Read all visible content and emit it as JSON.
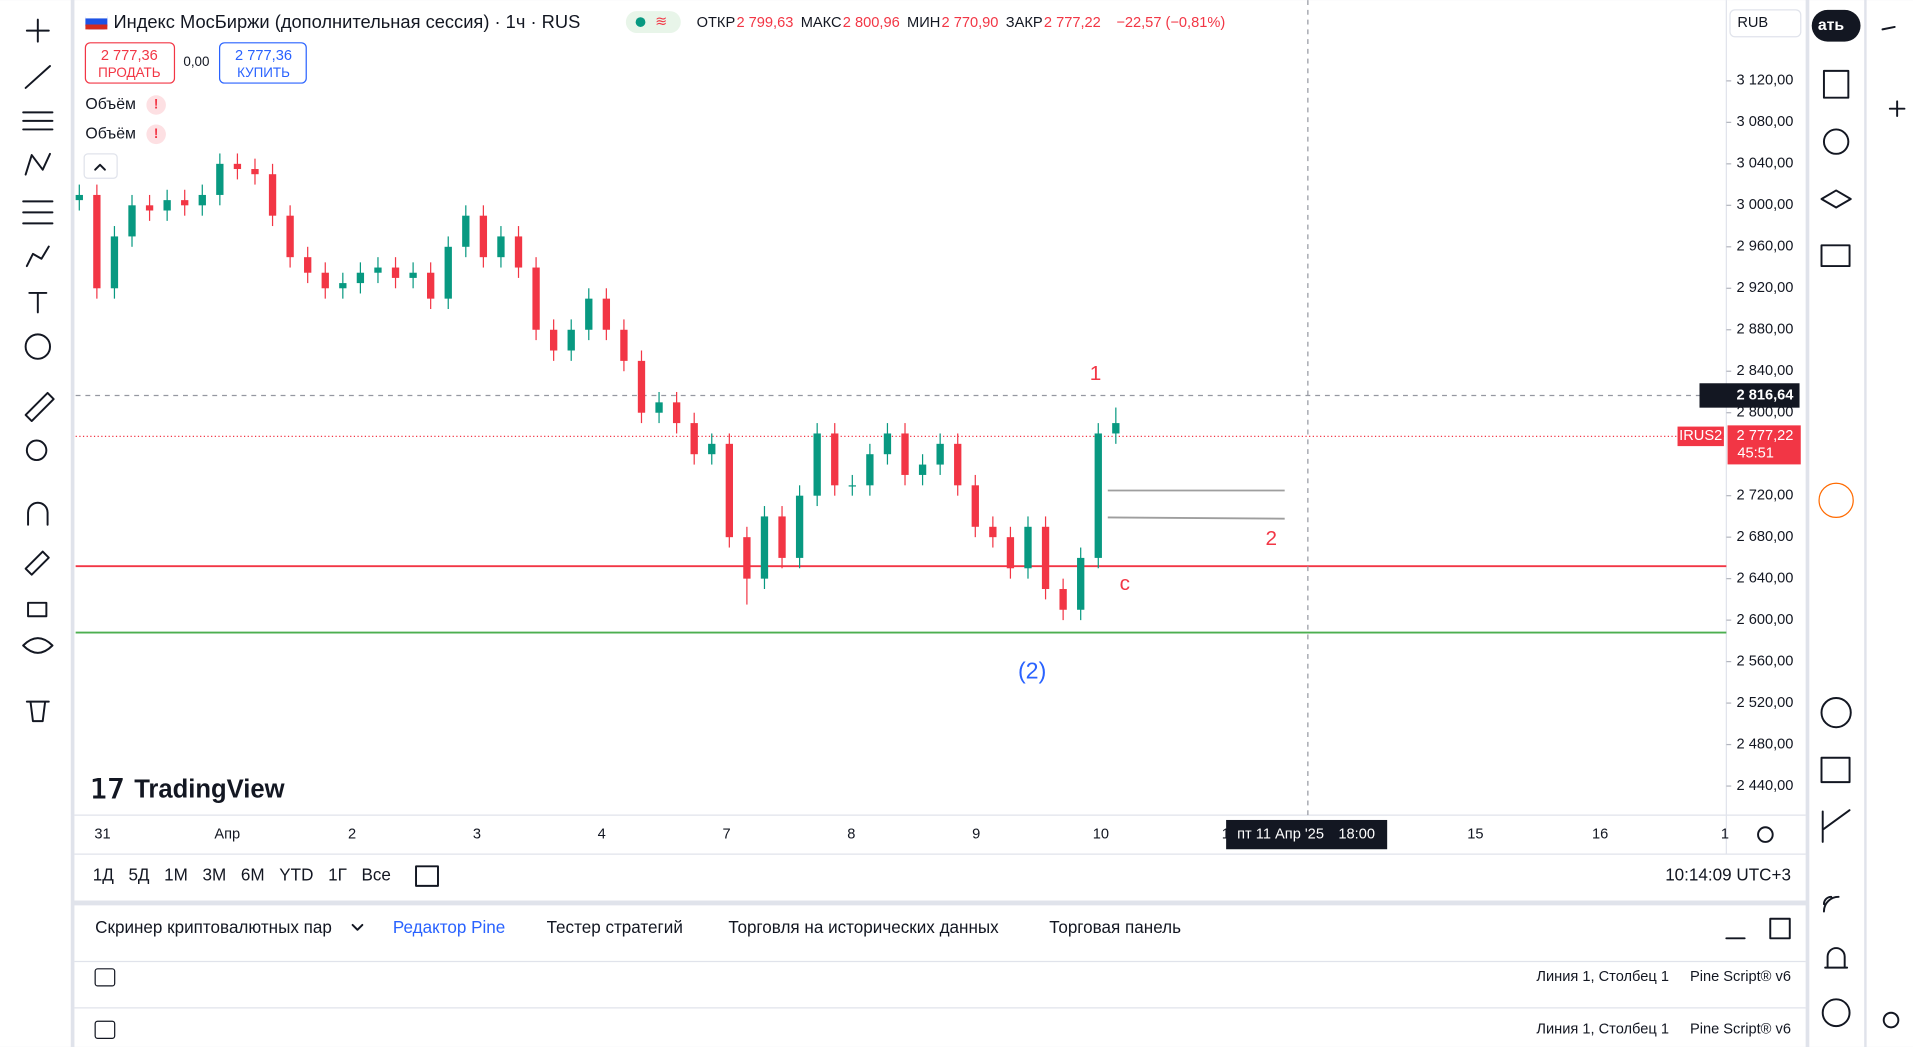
{
  "header": {
    "title": "Индекс МосБиржи (дополнительная сессия) · 1ч · RUS",
    "ohlc": [
      {
        "label": "ОТКР",
        "value": "2 799,63"
      },
      {
        "label": "МАКС",
        "value": "2 800,96"
      },
      {
        "label": "МИН",
        "value": "2 770,90"
      },
      {
        "label": "ЗАКР",
        "value": "2 777,22"
      }
    ],
    "change": "−22,57 (−0,81%)",
    "sell_price": "2 777,36",
    "sell": "ПРОДАТЬ",
    "spread": "0,00",
    "buy_price": "2 777,36",
    "buy": "КУПИТЬ",
    "indicators": [
      "Объём",
      "Объём"
    ],
    "currency": "RUB",
    "top_button": "ать"
  },
  "chart": {
    "type": "candlestick",
    "up_color": "#089981",
    "down_color": "#f23645",
    "ylim": [
      2412,
      3192
    ],
    "yticks": [
      {
        "value": 2440,
        "label": "2 440,00"
      },
      {
        "value": 2480,
        "label": "2 480,00"
      },
      {
        "value": 2520,
        "label": "2 520,00"
      },
      {
        "value": 2560,
        "label": "2 560,00"
      },
      {
        "value": 2600,
        "label": "2 600,00"
      },
      {
        "value": 2640,
        "label": "2 640,00"
      },
      {
        "value": 2680,
        "label": "2 680,00"
      },
      {
        "value": 2720,
        "label": "2 720,00"
      },
      {
        "value": 2800,
        "label": "2 800,00"
      },
      {
        "value": 2840,
        "label": "2 840,00"
      },
      {
        "value": 2880,
        "label": "2 880,00"
      },
      {
        "value": 2920,
        "label": "2 920,00"
      },
      {
        "value": 2960,
        "label": "2 960,00"
      },
      {
        "value": 3000,
        "label": "3 000,00"
      },
      {
        "value": 3040,
        "label": "3 040,00"
      },
      {
        "value": 3080,
        "label": "3 080,00"
      },
      {
        "value": 3120,
        "label": "3 120,00"
      }
    ],
    "grid": false,
    "xticks": [
      "31",
      "Апр",
      "2",
      "3",
      "4",
      "7",
      "8",
      "9",
      "10",
      "1",
      null,
      "15",
      "16",
      "1"
    ],
    "open": [
      3005,
      3010,
      2920,
      2970,
      3000,
      2995,
      3005,
      3000,
      3010,
      3040,
      3035,
      3030,
      2990,
      2950,
      2935,
      2920,
      2925,
      2935,
      2940,
      2930,
      2935,
      2910,
      2960,
      2990,
      2950,
      2970,
      2940,
      2880,
      2860,
      2880,
      2910,
      2880,
      2850,
      2800,
      2810,
      2790,
      2760,
      2770,
      2680,
      2640,
      2700,
      2660,
      2720,
      2780,
      2730,
      2730,
      2760,
      2780,
      2740,
      2750,
      2770,
      2730,
      2690,
      2680,
      2650,
      2690,
      2630,
      2610,
      2660,
      2780
    ],
    "high": [
      3020,
      3020,
      2980,
      3010,
      3010,
      3015,
      3015,
      3020,
      3050,
      3050,
      3045,
      3040,
      3000,
      2960,
      2945,
      2935,
      2945,
      2950,
      2950,
      2945,
      2945,
      2970,
      3000,
      3000,
      2980,
      2980,
      2950,
      2890,
      2890,
      2920,
      2920,
      2890,
      2860,
      2820,
      2820,
      2800,
      2780,
      2780,
      2690,
      2710,
      2710,
      2730,
      2790,
      2790,
      2740,
      2770,
      2790,
      2790,
      2760,
      2780,
      2780,
      2740,
      2700,
      2690,
      2700,
      2700,
      2640,
      2670,
      2790,
      2805
    ],
    "low": [
      2995,
      2910,
      2910,
      2960,
      2985,
      2985,
      2990,
      2990,
      3000,
      3025,
      3020,
      2980,
      2940,
      2925,
      2910,
      2910,
      2915,
      2925,
      2920,
      2920,
      2900,
      2900,
      2950,
      2940,
      2940,
      2930,
      2870,
      2850,
      2850,
      2870,
      2870,
      2840,
      2790,
      2790,
      2780,
      2750,
      2750,
      2670,
      2615,
      2630,
      2650,
      2650,
      2710,
      2720,
      2720,
      2720,
      2750,
      2730,
      2730,
      2740,
      2720,
      2680,
      2670,
      2640,
      2640,
      2620,
      2600,
      2600,
      2650,
      2770
    ],
    "close": [
      3010,
      2920,
      2970,
      3000,
      2995,
      3005,
      3000,
      3010,
      3040,
      3035,
      3030,
      2990,
      2950,
      2935,
      2920,
      2925,
      2935,
      2940,
      2930,
      2935,
      2910,
      2960,
      2990,
      2950,
      2970,
      2940,
      2880,
      2860,
      2880,
      2910,
      2880,
      2850,
      2800,
      2810,
      2790,
      2760,
      2770,
      2680,
      2640,
      2700,
      2660,
      2720,
      2780,
      2730,
      2730,
      2760,
      2780,
      2740,
      2750,
      2770,
      2730,
      2690,
      2680,
      2650,
      2690,
      2630,
      2610,
      2660,
      2780,
      2790
    ],
    "levels": [
      {
        "value": 2652,
        "color": "#f23645"
      },
      {
        "value": 2588,
        "color": "#4caf50"
      }
    ],
    "segments": [
      {
        "value": 2725,
        "color": "#9e9e9e"
      },
      {
        "value": 2699,
        "color": "#9e9e9e"
      }
    ],
    "annotations": [
      "1",
      "2",
      "c",
      "(2)"
    ],
    "crosshair": {
      "price": 2816.64,
      "price_label": "2 816,64",
      "time_label": "пт 11 Апр '25",
      "time": "18:00"
    },
    "last": {
      "symbol": "IRUS2",
      "price": 2777.22,
      "price_label": "2 777,22",
      "countdown": "45:51"
    },
    "logo": "TradingView"
  },
  "toolbar": {
    "ranges": [
      "1Д",
      "5Д",
      "1М",
      "3М",
      "6М",
      "YTD",
      "1Г",
      "Все"
    ],
    "clock": "10:14:09 UTC+3"
  },
  "panel": {
    "tabs": [
      "Скринер криптовалютных пар",
      "Редактор Pine",
      "Тестер стратегий",
      "Торговля на исторических данных",
      "Торговая панель"
    ],
    "rows": [
      {
        "position": "Линия 1, Столбец 1",
        "version": "Pine Script® v6"
      },
      {
        "position": "Линия 1, Столбец 1",
        "version": "Pine Script® v6"
      }
    ]
  }
}
